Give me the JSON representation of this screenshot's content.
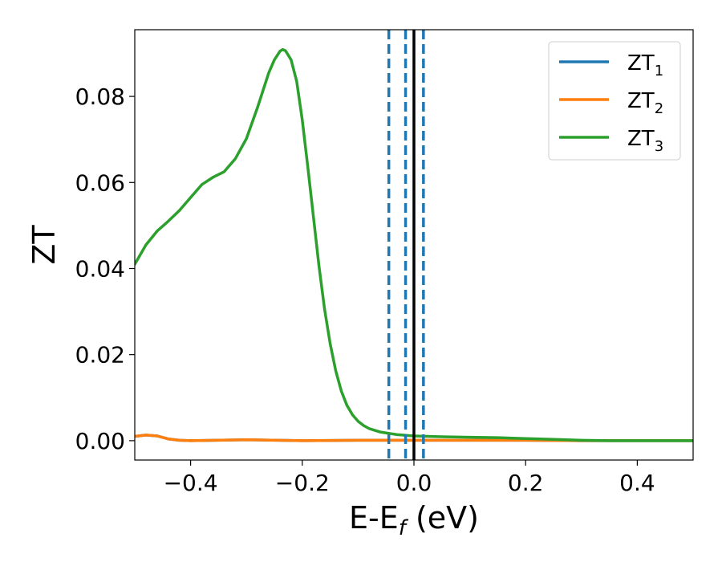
{
  "chart_data": {
    "type": "line",
    "xlabel": "E-E",
    "xlabel_sub": "f",
    "xlabel_unit": " (eV)",
    "ylabel": "ZT",
    "xlim": [
      -0.5,
      0.5
    ],
    "ylim": [
      -0.0045,
      0.0955
    ],
    "xticks": [
      -0.4,
      -0.2,
      0.0,
      0.2,
      0.4
    ],
    "xtick_labels": [
      "−0.4",
      "−0.2",
      "0.0",
      "0.2",
      "0.4"
    ],
    "yticks": [
      0.0,
      0.02,
      0.04,
      0.06,
      0.08
    ],
    "ytick_labels": [
      "0.00",
      "0.02",
      "0.04",
      "0.06",
      "0.08"
    ],
    "grid": false,
    "legend_position": "top-right",
    "series": [
      {
        "name": "ZT",
        "sub": "1",
        "color": "#1f77b4",
        "x": [
          -0.5,
          -0.48,
          -0.46,
          -0.44,
          -0.42,
          -0.4,
          -0.3,
          -0.2,
          -0.1,
          0.0,
          0.1,
          0.2,
          0.3,
          0.4,
          0.5
        ],
        "y": [
          0.001,
          0.0013,
          0.0011,
          0.0004,
          0.0001,
          0.0,
          0.0002,
          0.0,
          0.0001,
          0.0001,
          0.0001,
          0.0001,
          0.0,
          0.0,
          0.0
        ]
      },
      {
        "name": "ZT",
        "sub": "2",
        "color": "#ff7f0e",
        "x": [
          -0.5,
          -0.48,
          -0.46,
          -0.44,
          -0.42,
          -0.4,
          -0.3,
          -0.2,
          -0.1,
          0.0,
          0.1,
          0.2,
          0.3,
          0.4,
          0.5
        ],
        "y": [
          0.001,
          0.0013,
          0.0011,
          0.0004,
          0.0001,
          0.0,
          0.0002,
          0.0,
          0.0001,
          0.0001,
          0.0001,
          0.0001,
          0.0,
          0.0,
          0.0
        ]
      },
      {
        "name": "ZT",
        "sub": "3",
        "color": "#2ca02c",
        "x": [
          -0.5,
          -0.48,
          -0.46,
          -0.44,
          -0.42,
          -0.4,
          -0.38,
          -0.36,
          -0.34,
          -0.32,
          -0.3,
          -0.28,
          -0.26,
          -0.25,
          -0.24,
          -0.235,
          -0.23,
          -0.22,
          -0.21,
          -0.2,
          -0.19,
          -0.18,
          -0.17,
          -0.16,
          -0.15,
          -0.14,
          -0.13,
          -0.12,
          -0.11,
          -0.1,
          -0.09,
          -0.08,
          -0.07,
          -0.06,
          -0.05,
          -0.04,
          -0.03,
          -0.02,
          -0.01,
          0.0,
          0.05,
          0.1,
          0.15,
          0.2,
          0.25,
          0.3,
          0.35,
          0.4,
          0.45,
          0.5
        ],
        "y": [
          0.041,
          0.0455,
          0.0487,
          0.051,
          0.0535,
          0.0565,
          0.0595,
          0.0612,
          0.0625,
          0.0655,
          0.0702,
          0.0775,
          0.0855,
          0.0885,
          0.0905,
          0.0909,
          0.0906,
          0.0885,
          0.0835,
          0.0745,
          0.0635,
          0.052,
          0.0405,
          0.0305,
          0.0225,
          0.0162,
          0.0115,
          0.0082,
          0.006,
          0.0045,
          0.0035,
          0.0028,
          0.0024,
          0.002,
          0.0018,
          0.0016,
          0.0014,
          0.0013,
          0.0012,
          0.0011,
          0.0009,
          0.0008,
          0.0007,
          0.0005,
          0.0003,
          0.0001,
          0.0,
          0.0,
          0.0,
          0.0
        ]
      }
    ],
    "vlines": [
      {
        "x": -0.045,
        "color": "#1f77b4",
        "style": "dashed"
      },
      {
        "x": -0.015,
        "color": "#1f77b4",
        "style": "dashed"
      },
      {
        "x": 0.0,
        "color": "#000000",
        "style": "solid"
      },
      {
        "x": 0.017,
        "color": "#1f77b4",
        "style": "dashed"
      }
    ]
  }
}
